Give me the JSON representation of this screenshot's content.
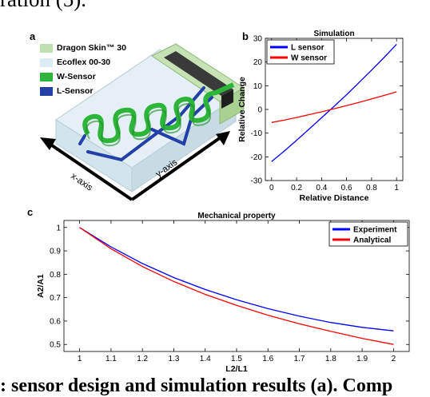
{
  "header_text": "ration (5).",
  "footer_text": ": sensor design and simulation results (a). Comp",
  "panel_a": {
    "letter": "a",
    "legend": [
      {
        "label": "Dragon Skin™ 30",
        "color": "#bfe0b0"
      },
      {
        "label": "Ecoflex 00-30",
        "color": "#dcecf3"
      },
      {
        "label": "W-Sensor",
        "color": "#2db53a"
      },
      {
        "label": "L-Sensor",
        "color": "#2240a8"
      }
    ],
    "axis_x": "x-axis",
    "axis_y": "y-axis"
  },
  "panel_b": {
    "letter": "b"
  },
  "panel_c": {
    "letter": "c"
  },
  "chart_data": [
    {
      "type": "line",
      "title": "Simulation",
      "xlabel": "Relative Distance",
      "ylabel": "Relative Change",
      "xlim": [
        -0.05,
        1.05
      ],
      "ylim": [
        -30,
        30
      ],
      "xticks": [
        0,
        0.2,
        0.4,
        0.6,
        0.8,
        1
      ],
      "yticks": [
        -30,
        -20,
        -10,
        0,
        10,
        20,
        30
      ],
      "legend_position": "top-left",
      "series": [
        {
          "name": "L sensor",
          "color": "#0000ff",
          "x": [
            0,
            0.1,
            0.2,
            0.3,
            0.4,
            0.5,
            0.6,
            0.7,
            0.8,
            0.9,
            1.0
          ],
          "values": [
            -22,
            -17.6,
            -13.0,
            -8.3,
            -3.5,
            1.3,
            6.2,
            11.4,
            16.6,
            21.9,
            27.5
          ]
        },
        {
          "name": "W sensor",
          "color": "#ff0000",
          "x": [
            0,
            0.1,
            0.2,
            0.3,
            0.4,
            0.5,
            0.6,
            0.7,
            0.8,
            0.9,
            1.0
          ],
          "values": [
            -5.5,
            -4.5,
            -3.4,
            -2.2,
            -1.0,
            0.3,
            1.6,
            3.0,
            4.4,
            5.9,
            7.4
          ]
        }
      ]
    },
    {
      "type": "line",
      "title": "Mechanical property",
      "xlabel": "L2/L1",
      "ylabel": "A2/A1",
      "xlim": [
        0.95,
        2.05
      ],
      "ylim": [
        0.47,
        1.03
      ],
      "xticks": [
        1,
        1.1,
        1.2,
        1.3,
        1.4,
        1.5,
        1.6,
        1.7,
        1.8,
        1.9,
        2
      ],
      "yticks": [
        0.5,
        0.6,
        0.7,
        0.8,
        0.9,
        1
      ],
      "legend_position": "top-right",
      "series": [
        {
          "name": "Experiment",
          "color": "#0000ff",
          "x": [
            1.0,
            1.1,
            1.2,
            1.3,
            1.4,
            1.5,
            1.6,
            1.7,
            1.8,
            1.9,
            2.0
          ],
          "values": [
            1.0,
            0.917,
            0.846,
            0.786,
            0.735,
            0.691,
            0.653,
            0.621,
            0.594,
            0.573,
            0.558
          ]
        },
        {
          "name": "Analytical",
          "color": "#ff0000",
          "x": [
            1.0,
            1.1,
            1.2,
            1.3,
            1.4,
            1.5,
            1.6,
            1.7,
            1.8,
            1.9,
            2.0
          ],
          "values": [
            1.0,
            0.909,
            0.833,
            0.769,
            0.714,
            0.667,
            0.625,
            0.588,
            0.556,
            0.526,
            0.5
          ]
        }
      ]
    }
  ]
}
